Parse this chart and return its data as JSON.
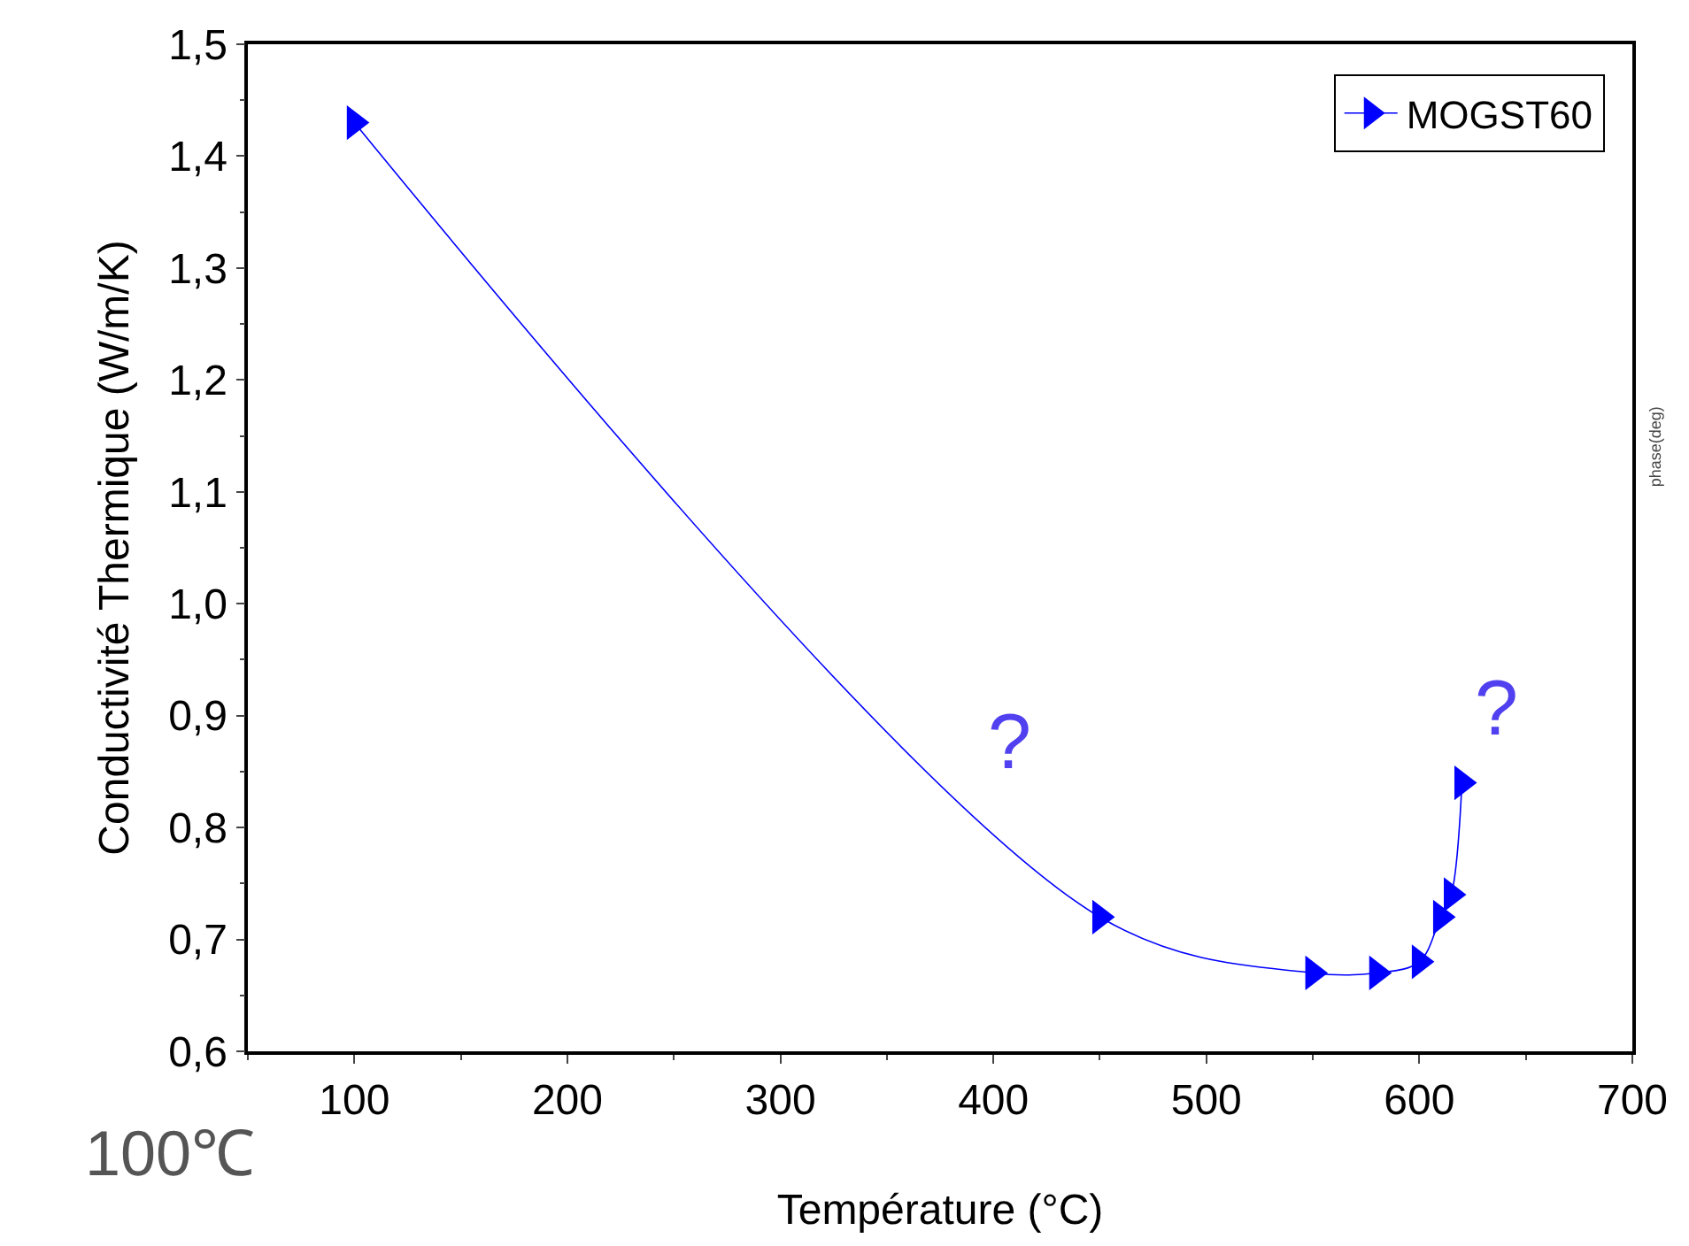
{
  "chart_data": {
    "type": "line",
    "xlabel": "Température (°C)",
    "ylabel": "Conductivité Thermique (W/m/K)",
    "x": [
      100,
      450,
      550,
      580,
      600,
      610,
      615,
      620
    ],
    "series": [
      {
        "name": "MOGST60",
        "color": "#0000ff",
        "values": [
          1.43,
          0.72,
          0.67,
          0.67,
          0.68,
          0.72,
          0.74,
          0.84
        ]
      }
    ],
    "xlim": [
      50,
      700
    ],
    "xticks": [
      100,
      200,
      300,
      400,
      500,
      600,
      700
    ],
    "ylim": [
      0.6,
      1.5
    ],
    "yticks": [
      {
        "value": 0.6,
        "label": "0,6"
      },
      {
        "value": 0.7,
        "label": "0,7"
      },
      {
        "value": 0.8,
        "label": "0,8"
      },
      {
        "value": 0.9,
        "label": "0,9"
      },
      {
        "value": 1.0,
        "label": "1,0"
      },
      {
        "value": 1.1,
        "label": "1,1"
      },
      {
        "value": 1.2,
        "label": "1,2"
      },
      {
        "value": 1.3,
        "label": "1,3"
      },
      {
        "value": 1.4,
        "label": "1,4"
      },
      {
        "value": 1.5,
        "label": "1,5"
      }
    ],
    "annotations": [
      "?",
      "?",
      "100℃",
      "phase(deg)"
    ],
    "marker": "triangle",
    "legend": "top right"
  }
}
